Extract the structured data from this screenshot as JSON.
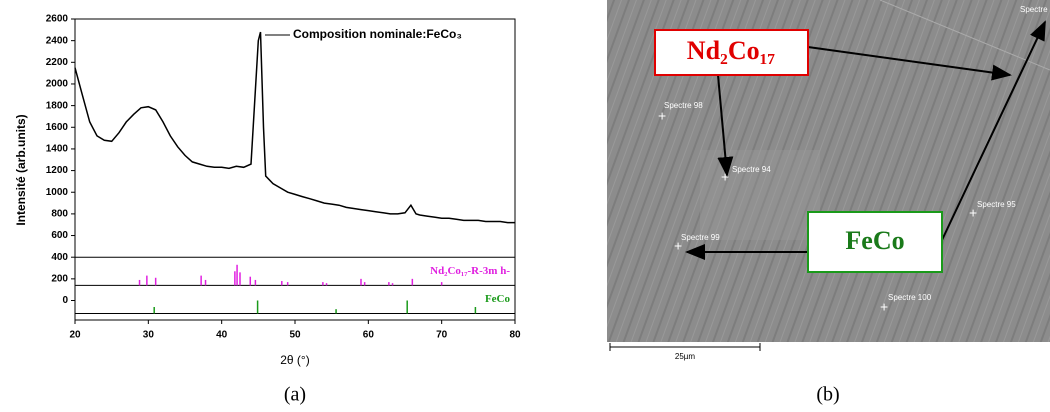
{
  "chart_data": {
    "type": "line",
    "xlabel": "2θ (°)",
    "ylabel": "Intensité (arb.units)",
    "xlim": [
      20,
      80
    ],
    "xticks": [
      20,
      30,
      40,
      50,
      60,
      70,
      80
    ],
    "ylim": [
      -180,
      2600
    ],
    "yticks": [
      0,
      200,
      400,
      600,
      800,
      1000,
      1200,
      1400,
      1600,
      1800,
      2000,
      2200,
      2400,
      2600
    ],
    "dividers": [
      400
    ],
    "series": [
      {
        "name": "Composition nominale:FeCo₃",
        "color": "#000000",
        "x": [
          20,
          21,
          22,
          23,
          24,
          25,
          26,
          27,
          28,
          29,
          30,
          31,
          32,
          33,
          34,
          35,
          36,
          37,
          38,
          39,
          40,
          41,
          42,
          43,
          44,
          45,
          45.3,
          45.7,
          46,
          47,
          48,
          49,
          50,
          51,
          52,
          53,
          54,
          55,
          56,
          57,
          58,
          59,
          60,
          61,
          62,
          63,
          64,
          65,
          65.8,
          66.5,
          67,
          68,
          69,
          70,
          71,
          72,
          73,
          74,
          75,
          76,
          77,
          78,
          79,
          80
        ],
        "values": [
          2150,
          1900,
          1650,
          1520,
          1480,
          1470,
          1550,
          1650,
          1720,
          1780,
          1790,
          1760,
          1650,
          1520,
          1420,
          1340,
          1280,
          1260,
          1240,
          1230,
          1230,
          1220,
          1240,
          1230,
          1260,
          2400,
          2480,
          1600,
          1150,
          1080,
          1040,
          1000,
          980,
          960,
          940,
          920,
          900,
          890,
          880,
          860,
          850,
          840,
          830,
          820,
          810,
          800,
          800,
          810,
          880,
          800,
          790,
          780,
          770,
          760,
          760,
          750,
          740,
          740,
          740,
          730,
          730,
          730,
          720,
          720
        ]
      }
    ],
    "reference_patterns": [
      {
        "name": "Nd₂Co₁₇-R-3m h-",
        "color": "#e020e0",
        "baseline": 140,
        "x": [
          28.8,
          29.8,
          31,
          37.2,
          37.8,
          41.8,
          42.1,
          42.5,
          43.9,
          44.6,
          48.2,
          49,
          53.8,
          54.3,
          59,
          59.5,
          62.8,
          63.3,
          66,
          70
        ],
        "values": [
          190,
          230,
          210,
          230,
          190,
          270,
          330,
          260,
          220,
          190,
          180,
          170,
          170,
          160,
          200,
          170,
          170,
          160,
          200,
          170
        ]
      },
      {
        "name": "FeCo",
        "color": "#1a9a1a",
        "baseline": -120,
        "x": [
          30.8,
          44.9,
          55.6,
          65.3,
          74.6
        ],
        "values": [
          -60,
          0,
          -80,
          0,
          -60
        ]
      }
    ]
  },
  "image": {
    "boxes": [
      "Nd₂Co₁₇",
      "FeCo"
    ],
    "spectra": [
      "Spectre 98",
      "Spectre 94",
      "Spectre 99",
      "Spectre 100",
      "Spectre 95",
      "Spectre"
    ],
    "scale_bar": "25µm"
  },
  "captions": [
    "(a)",
    "(b)"
  ]
}
